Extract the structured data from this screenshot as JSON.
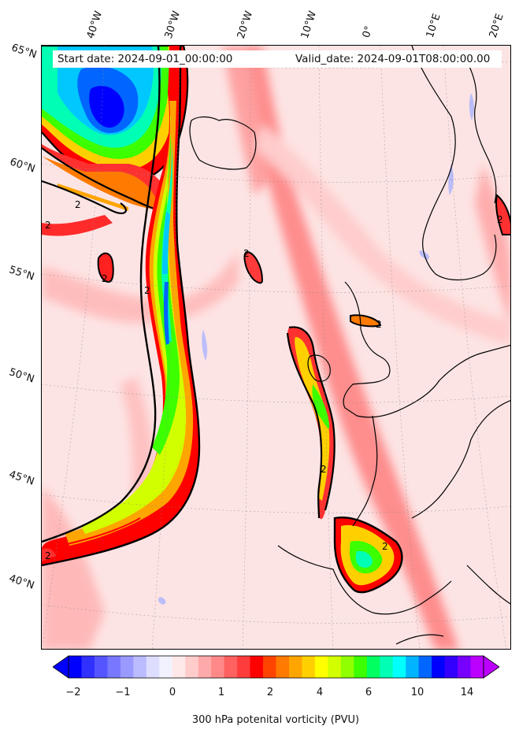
{
  "header": {
    "start_date": "Start date: 2024-09-01_00:00:00",
    "valid_date": "Valid_date: 2024-09-01T08:00:00.00"
  },
  "longitude_labels": [
    "40°W",
    "30°W",
    "20°W",
    "10°W",
    "0°",
    "10°E",
    "20°E"
  ],
  "latitude_labels": [
    "65°N",
    "60°N",
    "55°N",
    "50°N",
    "45°N",
    "40°N"
  ],
  "contour_label": "2",
  "colorbar": {
    "ticks": [
      "−2",
      "−1",
      "0",
      "1",
      "2",
      "4",
      "6",
      "10",
      "14"
    ],
    "label": "300 hPa potenital vorticity (PVU)",
    "colors": [
      "#0000ff",
      "#3030ff",
      "#5555ff",
      "#7777ff",
      "#9999ff",
      "#bbbbff",
      "#ddddff",
      "#f2f2ff",
      "#ffe8e8",
      "#ffcccc",
      "#ffaaaa",
      "#ff8888",
      "#ff6060",
      "#ff3c3c",
      "#ff0000",
      "#ff4400",
      "#ff7a00",
      "#ffa500",
      "#ffd000",
      "#ffff00",
      "#d2ff00",
      "#90ff00",
      "#3cff00",
      "#00ff60",
      "#00ffb4",
      "#00ffff",
      "#00b4ff",
      "#0066ff",
      "#0000ff",
      "#3300ff",
      "#7700ff",
      "#bb00ff"
    ]
  }
}
